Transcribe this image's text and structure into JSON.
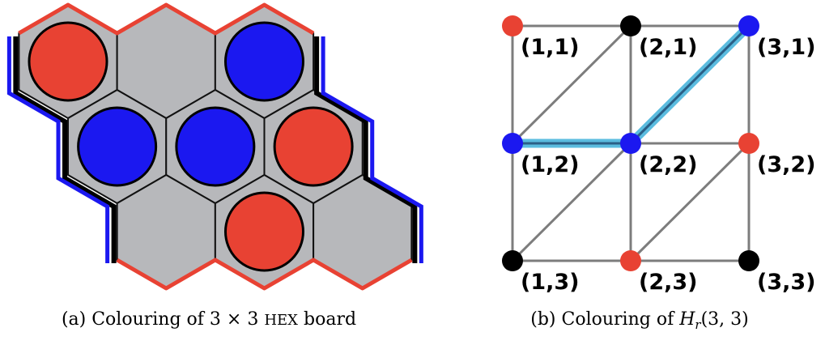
{
  "colors": {
    "red": "#e84233",
    "blue": "#1b18f0",
    "black": "#000000",
    "cell_fill": "#b7b8bb",
    "grid_edge": "#7d7d7d",
    "path_highlight": "#5bbcdf"
  },
  "hex_board": {
    "caption_prefix": "(a) Colouring of 3 × 3 ",
    "caption_game": "Hex",
    "caption_suffix": " board",
    "stones": [
      {
        "row": 1,
        "col": 1,
        "color": "red"
      },
      {
        "row": 1,
        "col": 2,
        "color": "empty"
      },
      {
        "row": 1,
        "col": 3,
        "color": "blue"
      },
      {
        "row": 2,
        "col": 1,
        "color": "blue"
      },
      {
        "row": 2,
        "col": 2,
        "color": "blue"
      },
      {
        "row": 2,
        "col": 3,
        "color": "red"
      },
      {
        "row": 3,
        "col": 1,
        "color": "empty"
      },
      {
        "row": 3,
        "col": 2,
        "color": "red"
      },
      {
        "row": 3,
        "col": 3,
        "color": "empty"
      }
    ]
  },
  "graph": {
    "caption_prefix": "(b) Colouring of ",
    "caption_math": "H",
    "caption_sub": "r",
    "caption_args": "(3, 3)",
    "nodes": [
      {
        "id": "1,1",
        "label": "(1,1)",
        "x": 1,
        "y": 1,
        "color": "red"
      },
      {
        "id": "2,1",
        "label": "(2,1)",
        "x": 2,
        "y": 1,
        "color": "black"
      },
      {
        "id": "3,1",
        "label": "(3,1)",
        "x": 3,
        "y": 1,
        "color": "blue"
      },
      {
        "id": "1,2",
        "label": "(1,2)",
        "x": 1,
        "y": 2,
        "color": "blue"
      },
      {
        "id": "2,2",
        "label": "(2,2)",
        "x": 2,
        "y": 2,
        "color": "blue"
      },
      {
        "id": "3,2",
        "label": "(3,2)",
        "x": 3,
        "y": 2,
        "color": "red"
      },
      {
        "id": "1,3",
        "label": "(1,3)",
        "x": 1,
        "y": 3,
        "color": "black"
      },
      {
        "id": "2,3",
        "label": "(2,3)",
        "x": 2,
        "y": 3,
        "color": "red"
      },
      {
        "id": "3,3",
        "label": "(3,3)",
        "x": 3,
        "y": 3,
        "color": "black"
      }
    ],
    "edges": [
      [
        "1,1",
        "2,1"
      ],
      [
        "2,1",
        "3,1"
      ],
      [
        "1,2",
        "2,2"
      ],
      [
        "2,2",
        "3,2"
      ],
      [
        "1,3",
        "2,3"
      ],
      [
        "2,3",
        "3,3"
      ],
      [
        "1,1",
        "1,2"
      ],
      [
        "1,2",
        "1,3"
      ],
      [
        "2,1",
        "2,2"
      ],
      [
        "2,2",
        "2,3"
      ],
      [
        "3,1",
        "3,2"
      ],
      [
        "3,2",
        "3,3"
      ],
      [
        "1,2",
        "2,1"
      ],
      [
        "2,2",
        "3,1"
      ],
      [
        "1,3",
        "2,2"
      ],
      [
        "2,3",
        "3,2"
      ]
    ],
    "highlighted_path": [
      "1,2",
      "2,2",
      "3,1"
    ]
  }
}
